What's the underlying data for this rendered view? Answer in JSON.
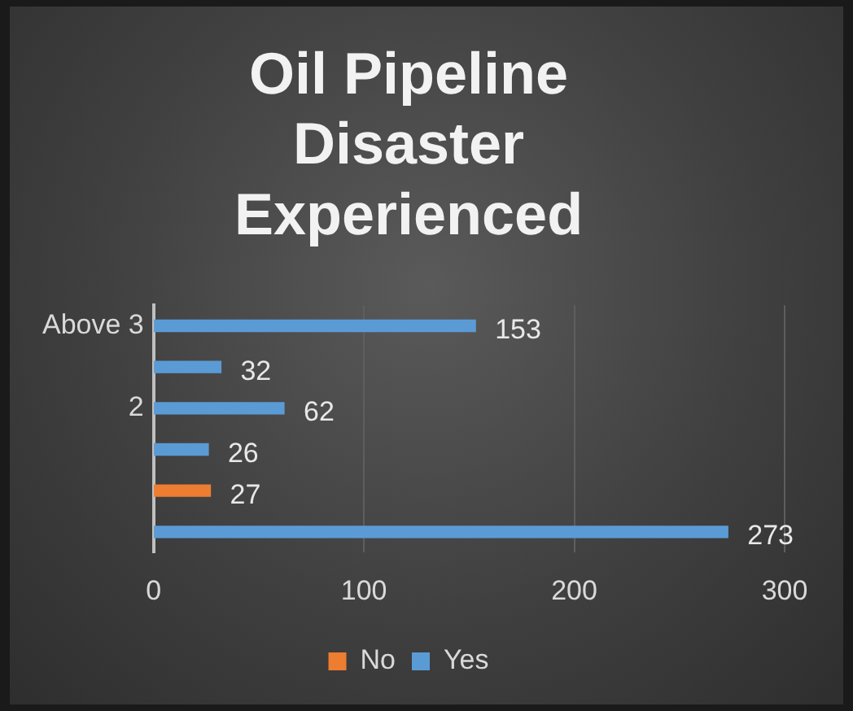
{
  "chart_data": {
    "type": "bar",
    "orientation": "horizontal",
    "title": "Oil Pipeline Disaster Experienced",
    "categories": [
      "Above 3",
      null,
      "2",
      null,
      null,
      null
    ],
    "series": [
      {
        "name": "No",
        "color": "#ed7d31",
        "values": [
          null,
          null,
          null,
          null,
          27,
          null
        ]
      },
      {
        "name": "Yes",
        "color": "#5b9bd5",
        "values": [
          153,
          32,
          62,
          26,
          null,
          273
        ]
      }
    ],
    "xlim": [
      0,
      300
    ],
    "xticks": [
      0,
      100,
      200,
      300
    ],
    "grid": "x",
    "legend": "bottom",
    "data_labels": true
  }
}
